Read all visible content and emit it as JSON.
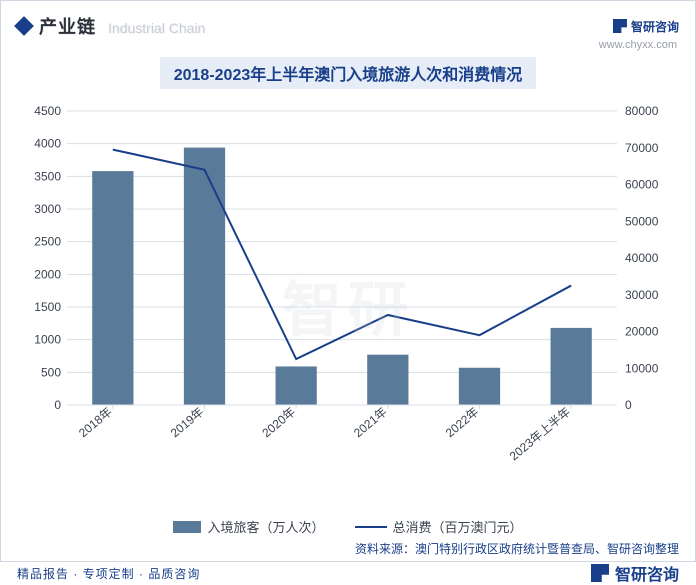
{
  "header": {
    "section_cn": "产业链",
    "section_en": "Industrial Chain",
    "brand": "智研咨询",
    "site": "www.chyxx.com"
  },
  "chart": {
    "title": "2018-2023年上半年澳门入境旅游人次和消费情况",
    "type": "bar+line",
    "background_color": "#ffffff",
    "grid_color": "#d8dde6",
    "categories": [
      "2018年",
      "2019年",
      "2020年",
      "2021年",
      "2022年",
      "2023年上半年"
    ],
    "bar_series": {
      "name": "入境旅客（万人次）",
      "color": "#5a7a99",
      "values": [
        3580,
        3940,
        590,
        770,
        570,
        1180
      ]
    },
    "line_series": {
      "name": "总消费（百万澳门元）",
      "color": "#1a3f8a",
      "values": [
        69500,
        64000,
        12500,
        24500,
        19000,
        32500
      ]
    },
    "y_left": {
      "min": 0,
      "max": 4500,
      "step": 500
    },
    "y_right": {
      "min": 0,
      "max": 80000,
      "step": 10000
    },
    "bar_width": 0.45,
    "line_width": 2,
    "label_fontsize": 12,
    "title_fontsize": 16,
    "label_color": "#3c4350",
    "x_label_angle": -40
  },
  "source": "资料来源：澳门特别行政区政府统计暨普查局、智研咨询整理",
  "footer": {
    "text": "精品报告 · 专项定制 · 品质咨询",
    "brand": "智研咨询"
  },
  "watermark": "智研"
}
